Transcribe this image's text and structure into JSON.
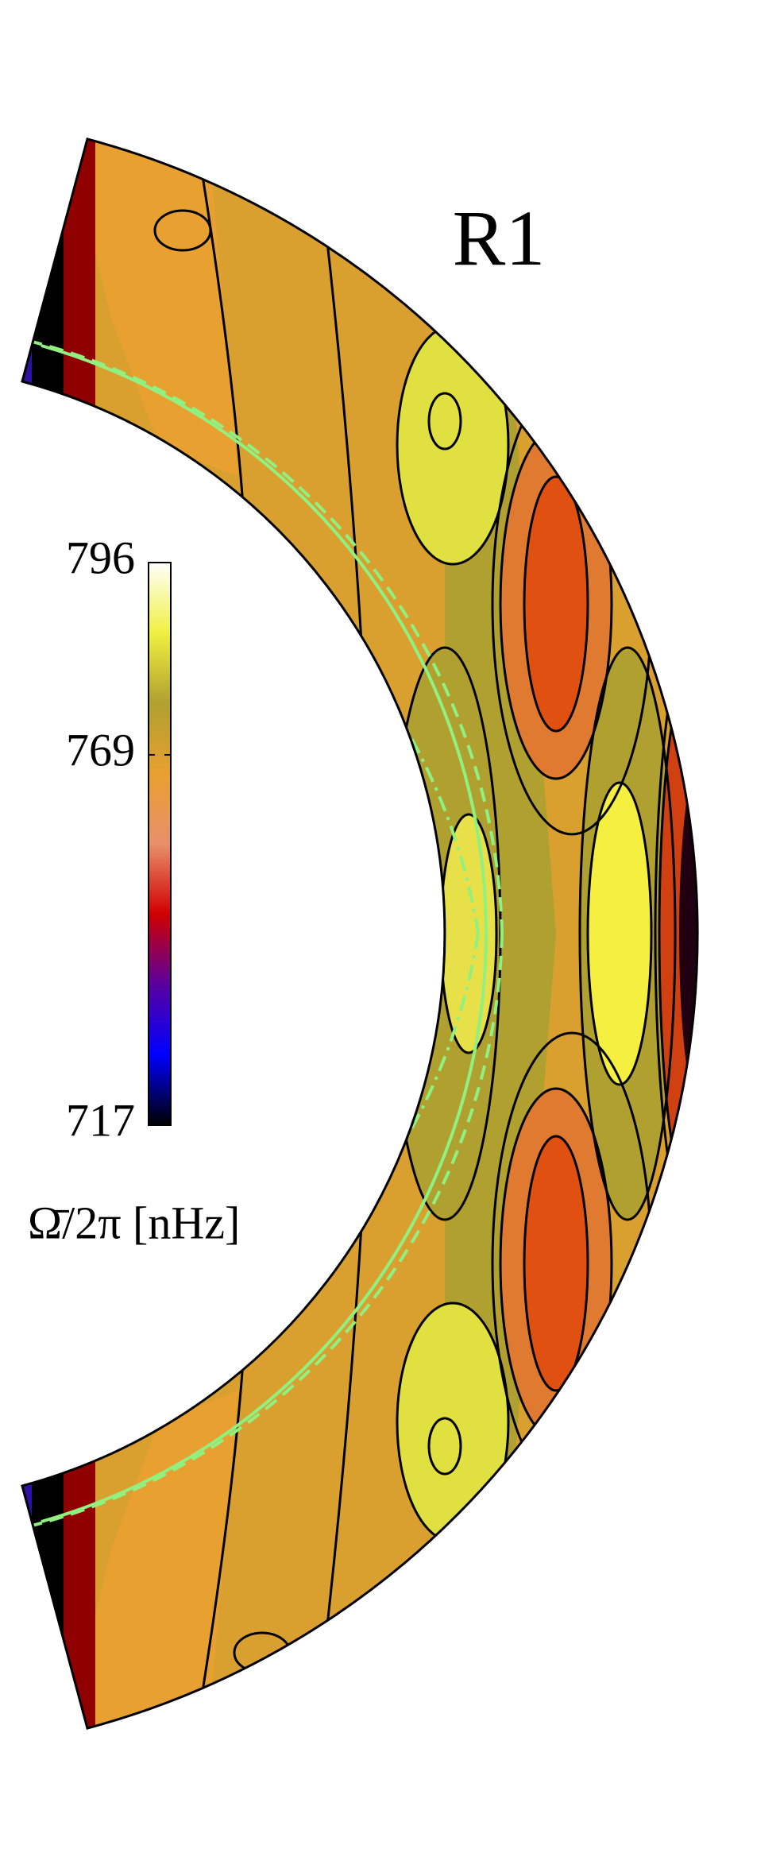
{
  "chart_data": {
    "type": "contour",
    "title": "R1",
    "colorbar_label": "Ω̄/2π [nHz]",
    "colorbar_lim": [
      717,
      796
    ],
    "colorbar_ticks": [
      717,
      769,
      796
    ],
    "colormap": [
      "#000000",
      "#0000ff",
      "#5a00a0",
      "#d00000",
      "#e8906a",
      "#e8a030",
      "#b0a030",
      "#f0f040",
      "#ffffff"
    ]
  }
}
